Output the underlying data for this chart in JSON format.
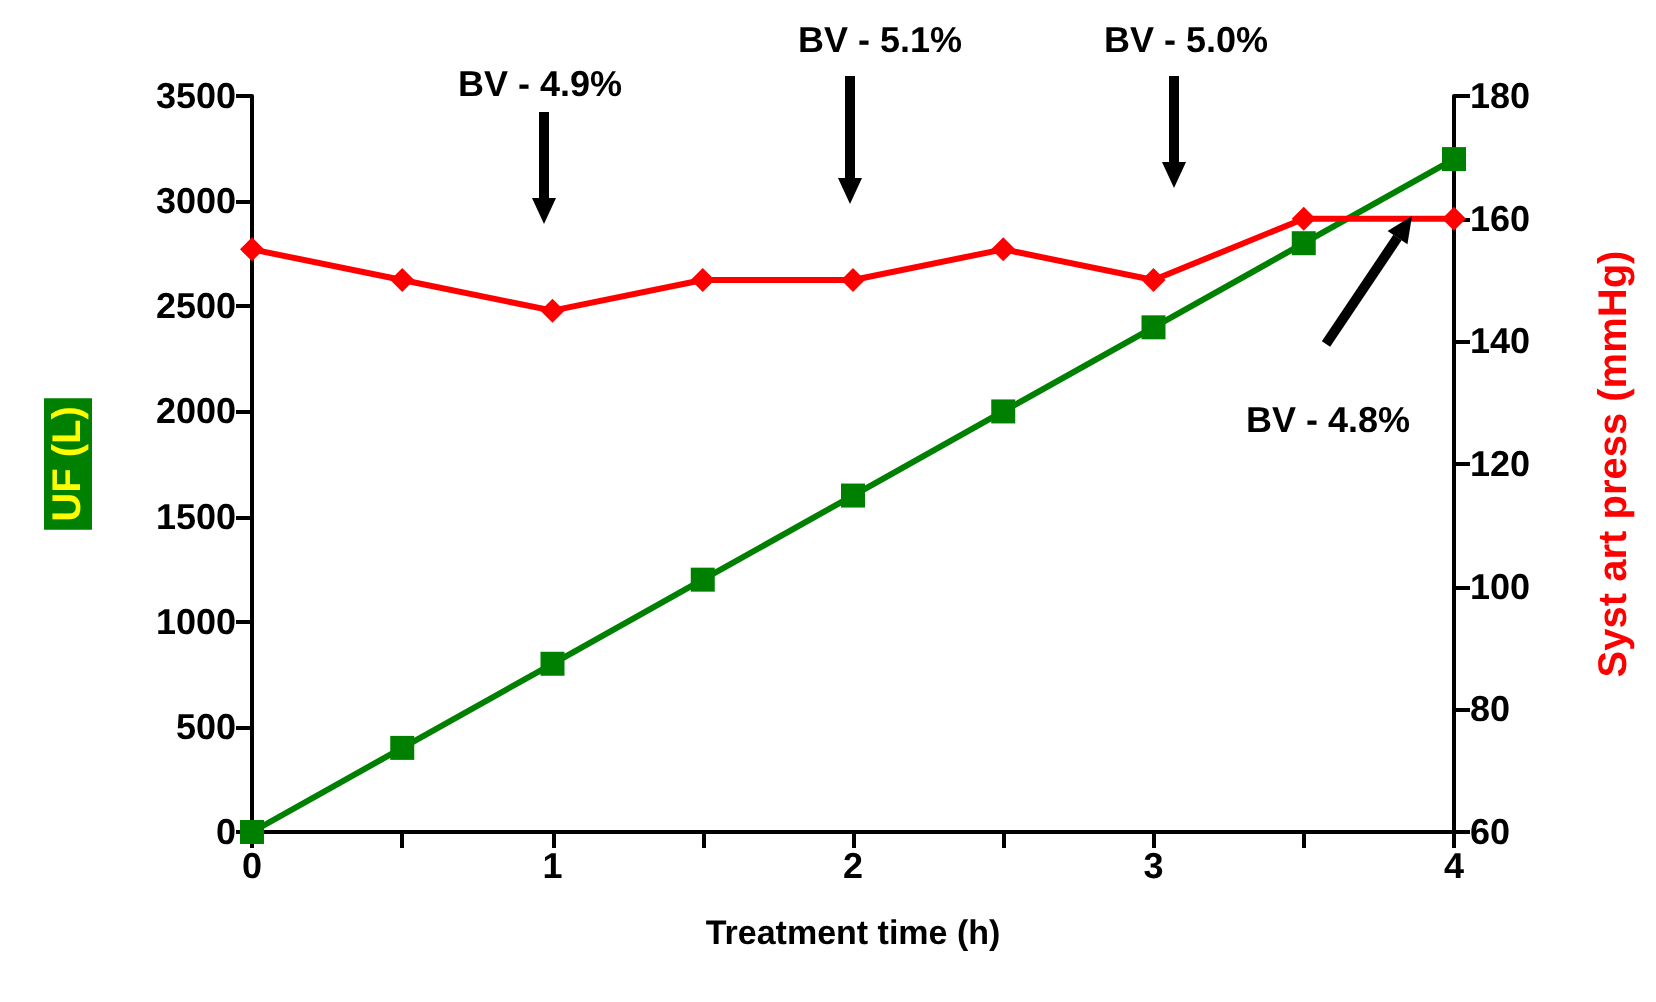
{
  "chart_data": {
    "type": "line",
    "xlabel": "Treatment time (h)",
    "ylabel": "UF (L)",
    "y2label": "Syst art press (mmHg)",
    "x": [
      0,
      0.5,
      1,
      1.5,
      2,
      2.5,
      3,
      3.5,
      4
    ],
    "series": [
      {
        "color": "#008000",
        "marker": "square",
        "values": [
          0,
          400,
          800,
          1200,
          1600,
          2000,
          2400,
          2800,
          3200
        ]
      },
      {
        "color": "#ff0000",
        "marker": "diamond",
        "axis": "y2",
        "values": [
          155,
          150,
          145,
          150,
          150,
          155,
          150,
          160,
          160
        ]
      }
    ],
    "xlim": [
      0,
      4
    ],
    "xticks": [
      0,
      {
        "value": 0.5,
        "label": null
      },
      1,
      {
        "value": 1.5,
        "label": null
      },
      2,
      {
        "value": 2.5,
        "label": null
      },
      3,
      {
        "value": 3.5,
        "label": null
      },
      4
    ],
    "ylim": [
      0,
      3500
    ],
    "yticks": [
      0,
      500,
      1000,
      1500,
      2000,
      2500,
      3000,
      3500
    ],
    "y2lim": [
      60,
      180
    ],
    "y2ticks": [
      60,
      80,
      100,
      120,
      140,
      160,
      180
    ],
    "annotations": [
      "BV - 4.9%",
      "BV - 5.1%",
      "BV - 5.0%",
      "BV - 4.8%"
    ],
    "grid": false,
    "line_style": "solid"
  }
}
